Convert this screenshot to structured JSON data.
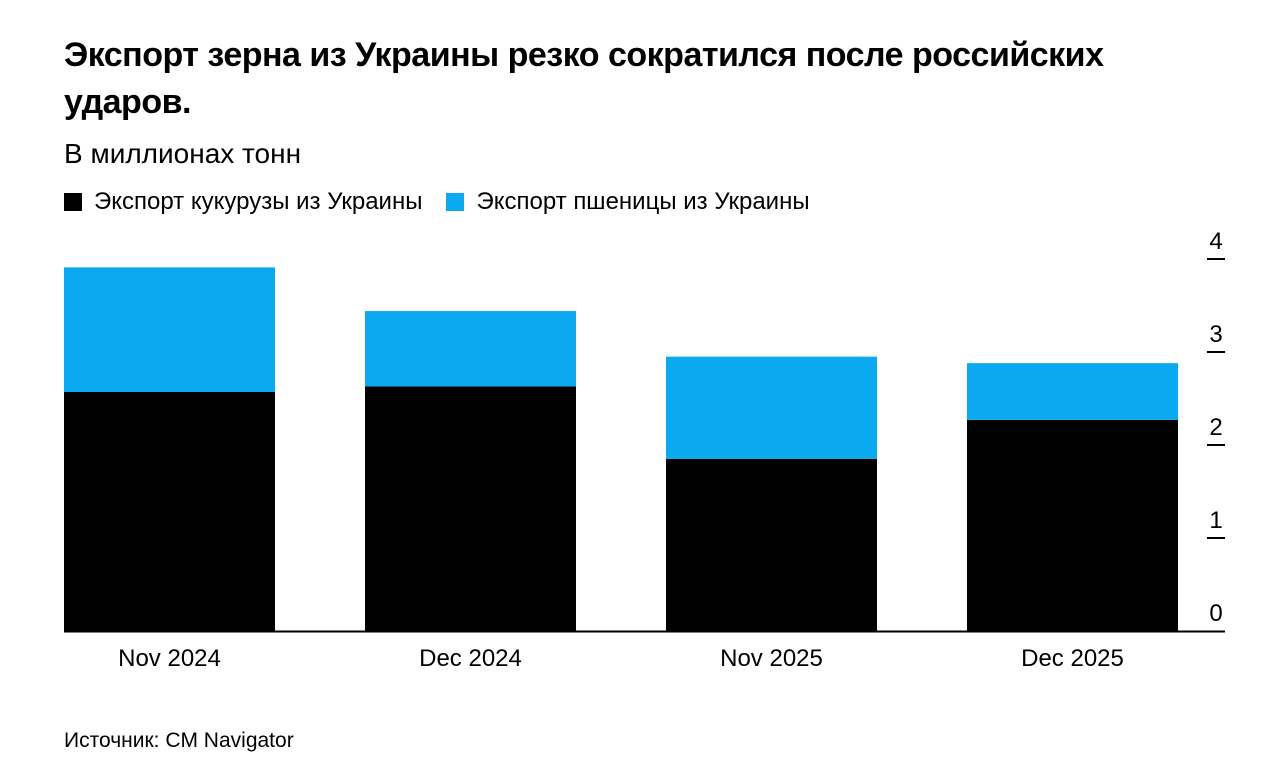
{
  "chart_data": {
    "type": "bar",
    "stacked": true,
    "title": "Экспорт зерна из Украины резко сократился после российских ударов.",
    "subtitle": "В миллионах тонн",
    "categories": [
      "Nov 2024",
      "Dec 2024",
      "Nov 2025",
      "Dec 2025"
    ],
    "series": [
      {
        "name": "Экспорт кукурузы из Украины",
        "color": "#000000",
        "values": [
          2.57,
          2.63,
          1.85,
          2.27
        ]
      },
      {
        "name": "Экспорт пшеницы из Украины",
        "color": "#0aa9f0",
        "values": [
          1.34,
          0.81,
          1.1,
          0.61
        ]
      }
    ],
    "yticks": [
      "0",
      "1",
      "2",
      "3",
      "4"
    ],
    "ylim": [
      0,
      4
    ],
    "yaxis_position": "right",
    "grid": false,
    "legend_position": "top-left"
  },
  "source": "Источник: CM Navigator"
}
